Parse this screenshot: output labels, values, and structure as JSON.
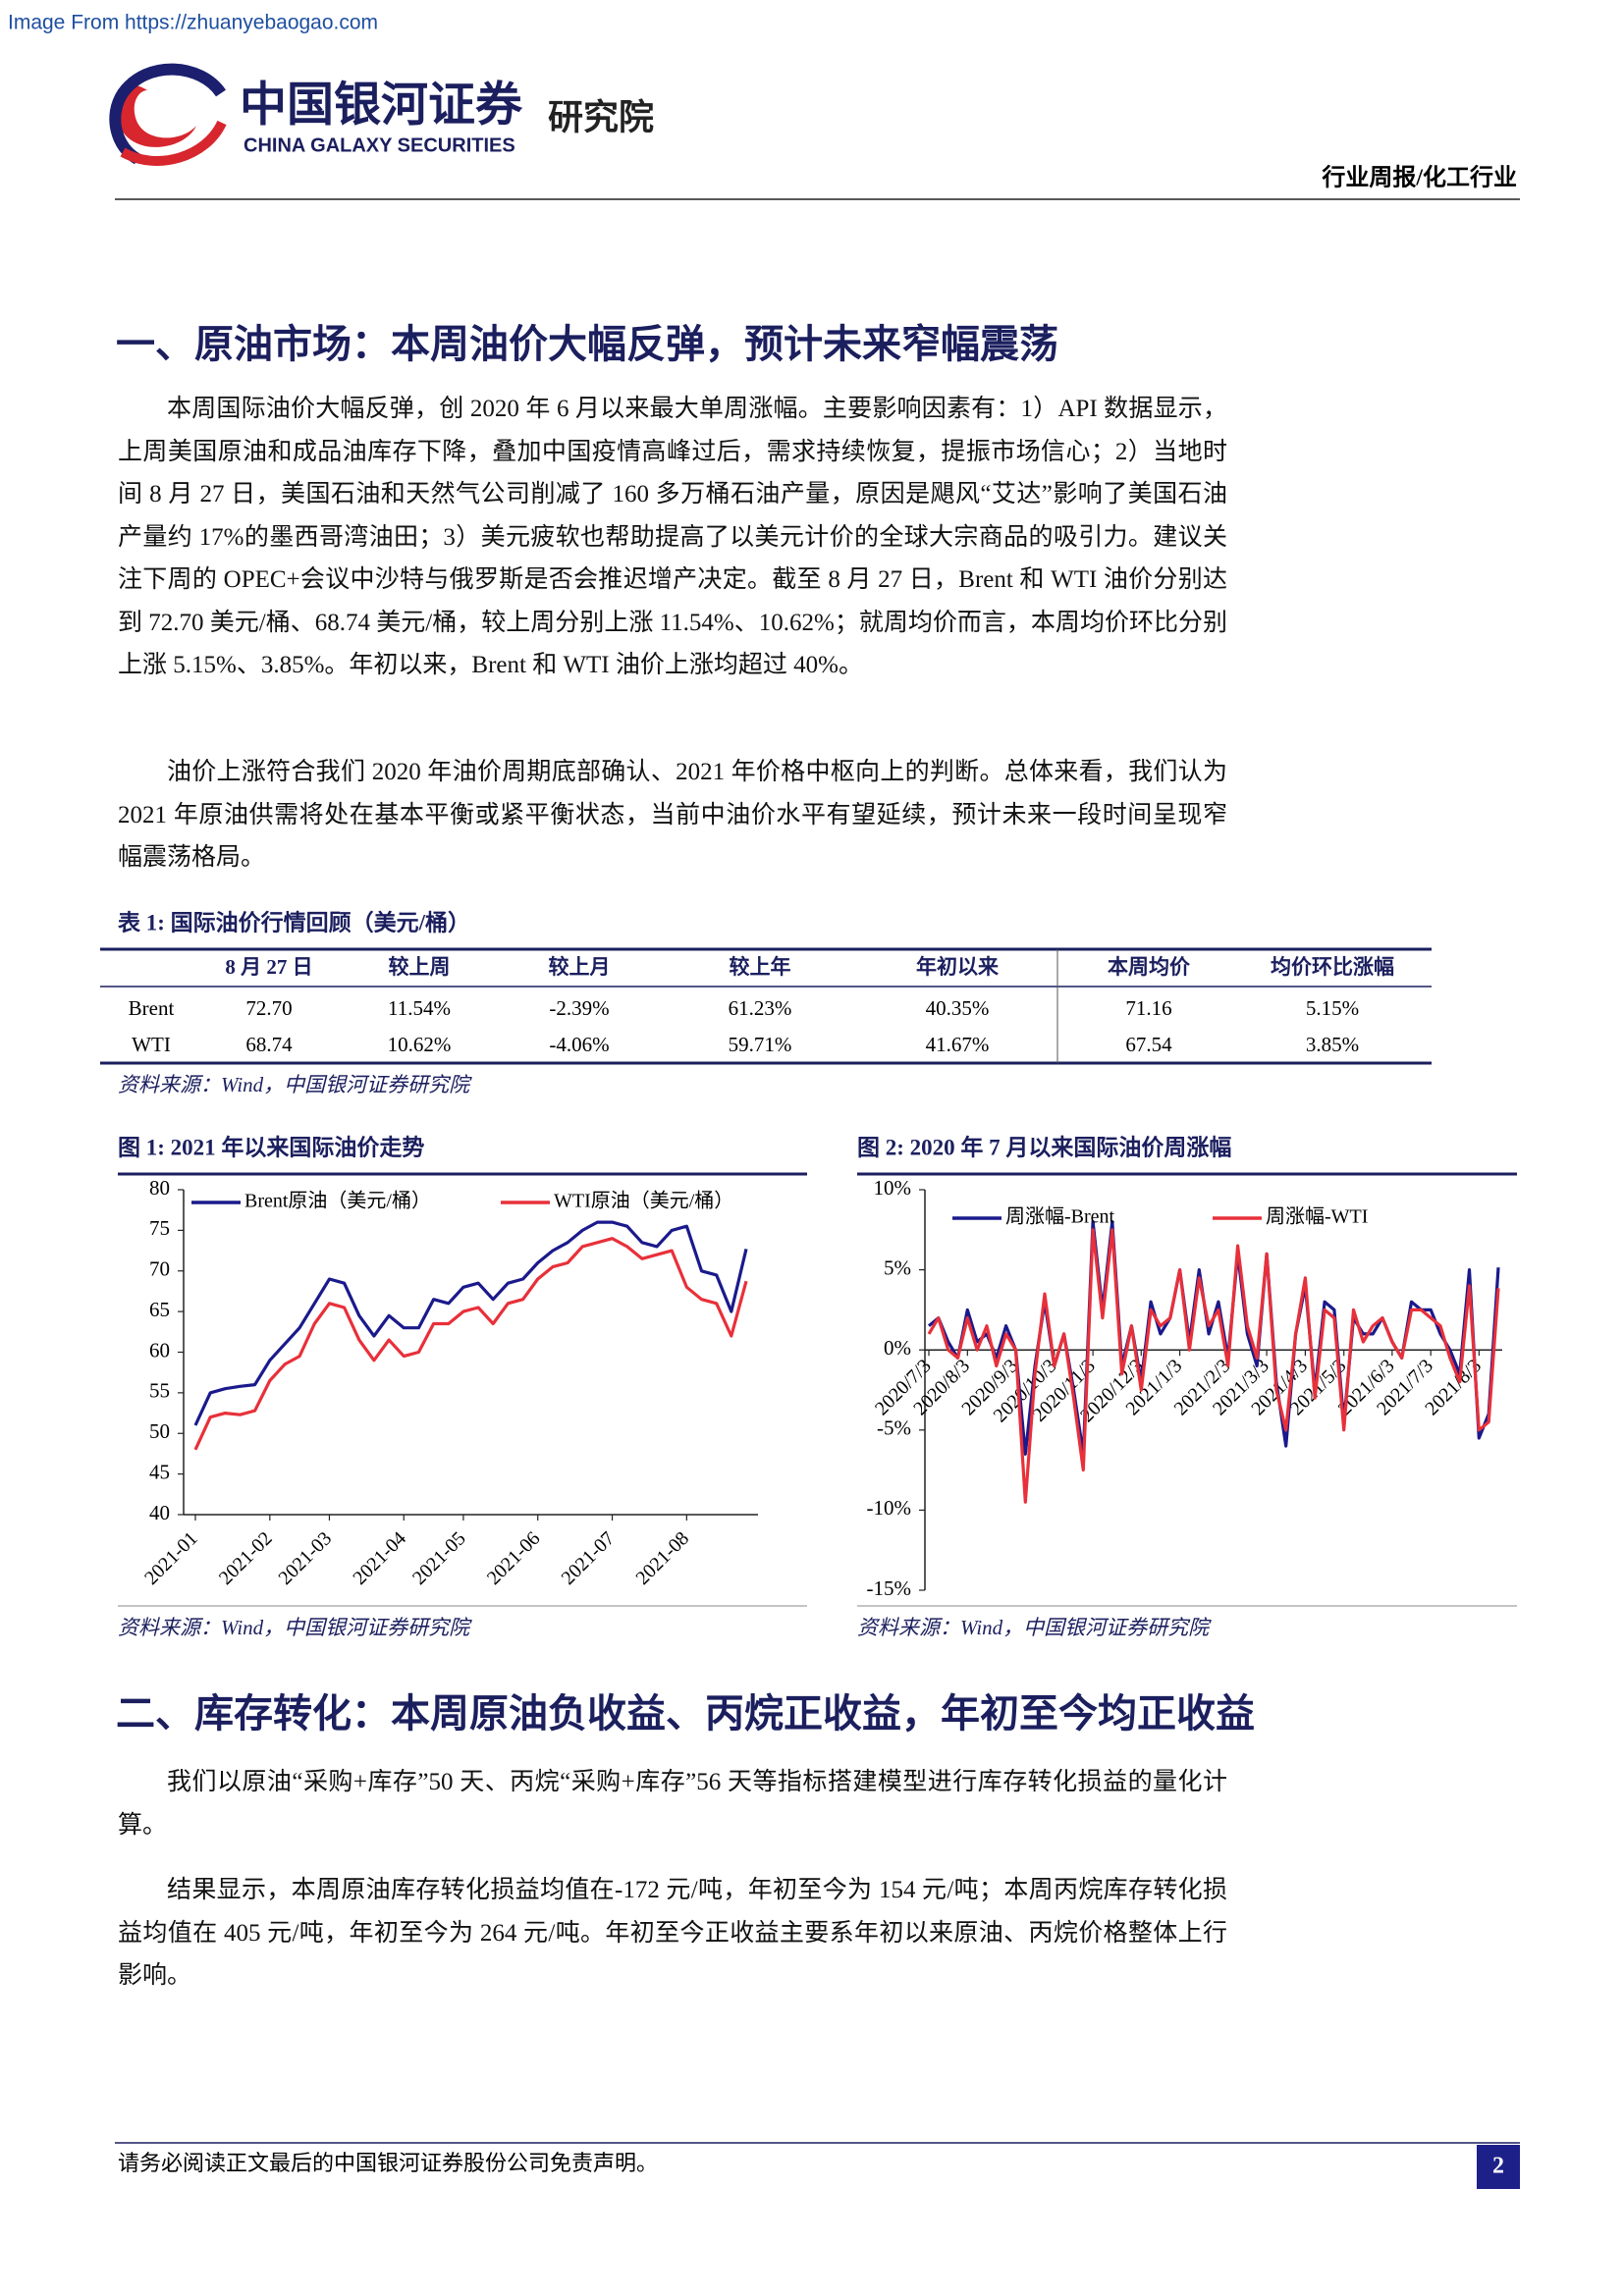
{
  "header": {
    "watermark": "Image From https://zhuanyebaogao.com",
    "logo_cn": "中国银河证券",
    "logo_en": "CHINA GALAXY SECURITIES",
    "institute": "研究院",
    "category": "行业周报/化工行业"
  },
  "sections": [
    {
      "heading": "一、原油市场：本周油价大幅反弹，预计未来窄幅震荡",
      "paragraphs": [
        "本周国际油价大幅反弹，创 2020 年 6 月以来最大单周涨幅。主要影响因素有：1）API 数据显示，上周美国原油和成品油库存下降，叠加中国疫情高峰过后，需求持续恢复，提振市场信心；2）当地时间 8 月 27 日，美国石油和天然气公司削减了 160 多万桶石油产量，原因是飓风“艾达”影响了美国石油产量约 17%的墨西哥湾油田；3）美元疲软也帮助提高了以美元计价的全球大宗商品的吸引力。建议关注下周的 OPEC+会议中沙特与俄罗斯是否会推迟增产决定。截至 8 月 27 日，Brent 和 WTI 油价分别达到 72.70 美元/桶、68.74 美元/桶，较上周分别上涨 11.54%、10.62%；就周均价而言，本周均价环比分别上涨 5.15%、3.85%。年初以来，Brent 和 WTI 油价上涨均超过 40%。",
        "油价上涨符合我们 2020 年油价周期底部确认、2021 年价格中枢向上的判断。总体来看，我们认为 2021 年原油供需将处在基本平衡或紧平衡状态，当前中油价水平有望延续，预计未来一段时间呈现窄幅震荡格局。"
      ]
    },
    {
      "heading": "二、库存转化：本周原油负收益、丙烷正收益，年初至今均正收益",
      "paragraphs": [
        "我们以原油“采购+库存”50 天、丙烷“采购+库存”56 天等指标搭建模型进行库存转化损益的量化计算。",
        "结果显示，本周原油库存转化损益均值在-172 元/吨，年初至今为 154 元/吨；本周丙烷库存转化损益均值在 405 元/吨，年初至今为 264 元/吨。年初至今正收益主要系年初以来原油、丙烷价格整体上行影响。"
      ]
    }
  ],
  "table": {
    "title": "表 1:  国际油价行情回顾（美元/桶）",
    "header": [
      "8 月 27 日",
      "较上周",
      "较上月",
      "较上年",
      "年初以来",
      "本周均价",
      "均价环比涨幅"
    ],
    "rows": [
      [
        "Brent",
        "72.70",
        "11.54%",
        "-2.39%",
        "61.23%",
        "40.35%",
        "71.16",
        "5.15%"
      ],
      [
        "WTI",
        "68.74",
        "10.62%",
        "-4.06%",
        "59.71%",
        "41.67%",
        "67.54",
        "3.85%"
      ]
    ],
    "source": "资料来源：Wind，中国银河证券研究院"
  },
  "chart_data": [
    {
      "type": "line",
      "title": "图 1:  2021 年以来国际油价走势",
      "source": "资料来源：Wind，中国银河证券研究院",
      "legend": "upper left",
      "categories": [
        "2021-01",
        null,
        null,
        null,
        null,
        "2021-02",
        null,
        null,
        null,
        "2021-03",
        null,
        null,
        null,
        null,
        "2021-04",
        null,
        null,
        null,
        "2021-05",
        null,
        null,
        null,
        null,
        "2021-06",
        null,
        null,
        null,
        null,
        "2021-07",
        null,
        null,
        null,
        null,
        "2021-08",
        null,
        null,
        null,
        null
      ],
      "series": [
        {
          "name": "Brent原油（美元/桶）",
          "color": "#1a1a8c",
          "values": [
            51,
            55,
            55.5,
            55.8,
            56,
            59,
            61,
            63,
            66,
            69,
            68.5,
            64.5,
            62,
            64.5,
            63,
            63,
            66.5,
            66,
            68,
            68.5,
            66.5,
            68.5,
            69,
            71,
            72.5,
            73.5,
            75,
            76,
            76,
            75.5,
            73.5,
            73,
            75,
            75.5,
            70,
            69.5,
            65,
            72.7
          ]
        },
        {
          "name": "WTI原油（美元/桶）",
          "color": "#e8303a",
          "values": [
            48,
            52,
            52.5,
            52.3,
            52.8,
            56.5,
            58.5,
            59.5,
            63.5,
            66,
            65.5,
            61.5,
            59,
            61.5,
            59.5,
            60,
            63.5,
            63.5,
            65,
            65.5,
            63.5,
            66,
            66.5,
            69,
            70.5,
            71,
            73,
            73.5,
            74,
            73,
            71.5,
            72,
            72.5,
            68,
            66.5,
            66,
            62,
            68.74
          ]
        }
      ],
      "ylim": [
        40,
        80
      ],
      "yticks": [
        40,
        45,
        50,
        55,
        60,
        65,
        70,
        75,
        80
      ]
    },
    {
      "type": "line",
      "title": "图 2:  2020 年 7 月以来国际油价周涨幅",
      "source": "资料来源：Wind，中国银河证券研究院",
      "legend": "upper left",
      "categories": [
        "2020/7/3",
        null,
        null,
        null,
        "2020/8/3",
        null,
        null,
        null,
        null,
        "2020/9/3",
        null,
        null,
        null,
        "2020/10/3",
        null,
        null,
        null,
        "2020/11/3",
        null,
        null,
        null,
        null,
        "2020/12/3",
        null,
        null,
        null,
        "2021/1/3",
        null,
        null,
        null,
        null,
        "2021/2/3",
        null,
        null,
        null,
        "2021/3/3",
        null,
        null,
        null,
        "2021/4/3",
        null,
        null,
        null,
        "2021/5/3",
        null,
        null,
        null,
        null,
        "2021/6/3",
        null,
        null,
        null,
        "2021/7/3",
        null,
        null,
        null,
        null,
        "2021/8/3",
        null,
        null
      ],
      "series": [
        {
          "name": "周涨幅-Brent",
          "color": "#1a1a8c",
          "values": [
            1.5,
            2,
            0.5,
            -0.5,
            2.5,
            0.5,
            1,
            -0.5,
            1.5,
            0,
            -6.5,
            -1,
            3,
            -1,
            1,
            -2.5,
            -6.5,
            8,
            2.5,
            8,
            -1,
            1.5,
            -2,
            3,
            1,
            2,
            5,
            0.5,
            5,
            1,
            3,
            -0.5,
            6,
            1,
            -1,
            6,
            -2,
            -6,
            1,
            4,
            -2.5,
            3,
            2.5,
            -4.5,
            2,
            1,
            1,
            2,
            0.5,
            -0.5,
            3,
            2.5,
            2.5,
            1,
            0,
            -1.5,
            5,
            -5.5,
            -4,
            5.15
          ]
        },
        {
          "name": "周涨幅-WTI",
          "color": "#e8303a",
          "values": [
            1,
            2,
            0,
            -0.5,
            2,
            0,
            1.5,
            -1,
            1,
            0,
            -9.5,
            -1.5,
            3.5,
            -1,
            1,
            -3,
            -7.5,
            7.5,
            2,
            7.5,
            -1.5,
            1.5,
            -2.5,
            2.5,
            1.5,
            2,
            5,
            0,
            4.5,
            1.5,
            2.5,
            -1,
            6.5,
            1.5,
            -0.5,
            6,
            -2.5,
            -5,
            1,
            4.5,
            -3,
            2.5,
            2,
            -5,
            2.5,
            0.5,
            1.5,
            2,
            0.5,
            -0.5,
            2.5,
            2.5,
            2,
            1.5,
            -0.5,
            -2,
            4,
            -5,
            -4.5,
            3.85
          ]
        }
      ],
      "ylim": [
        -15,
        10
      ],
      "yticks": [
        {
          "value": -15,
          "label": "-15%"
        },
        {
          "value": -10,
          "label": "-10%"
        },
        {
          "value": -5,
          "label": "-5%"
        },
        {
          "value": 0,
          "label": "0%"
        },
        {
          "value": 5,
          "label": "5%"
        },
        {
          "value": 10,
          "label": "10%"
        }
      ]
    }
  ],
  "footer": {
    "disclaimer": "请务必阅读正文最后的中国银河证券股份公司免责声明。",
    "page": "2"
  }
}
